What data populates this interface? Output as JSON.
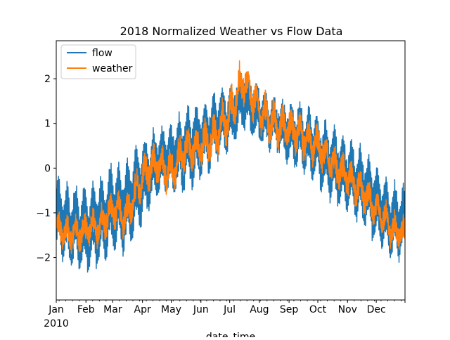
{
  "chart_data": {
    "type": "line",
    "title": "2018 Normalized Weather vs Flow Data",
    "xlabel": "date_time",
    "ylabel": "",
    "x_tick_labels": [
      "Jan",
      "Feb",
      "Mar",
      "Apr",
      "May",
      "Jun",
      "Jul",
      "Aug",
      "Sep",
      "Oct",
      "Nov",
      "Dec"
    ],
    "x_year_label": "2010",
    "y_ticks": [
      -2,
      -1,
      0,
      1,
      2
    ],
    "ylim": [
      -2.95,
      2.85
    ],
    "xlim": [
      "2010-01-01",
      "2010-12-31"
    ],
    "grid": false,
    "legend": {
      "position": "upper-left",
      "entries": [
        "flow",
        "weather"
      ]
    },
    "series": [
      {
        "name": "flow",
        "color": "#1f77b4",
        "x": [
          "2010-01-01",
          "2010-01-15",
          "2010-02-01",
          "2010-02-15",
          "2010-03-01",
          "2010-03-15",
          "2010-04-01",
          "2010-04-15",
          "2010-05-01",
          "2010-05-15",
          "2010-06-01",
          "2010-06-15",
          "2010-07-01",
          "2010-07-15",
          "2010-08-01",
          "2010-08-15",
          "2010-09-01",
          "2010-09-15",
          "2010-10-01",
          "2010-10-15",
          "2010-11-01",
          "2010-11-15",
          "2010-12-01",
          "2010-12-15",
          "2010-12-31"
        ],
        "y": [
          -1.1,
          -1.3,
          -1.4,
          -1.2,
          -0.9,
          -0.9,
          -0.3,
          0.1,
          0.2,
          0.4,
          0.6,
          0.9,
          1.1,
          1.6,
          1.2,
          1.0,
          0.8,
          0.7,
          0.4,
          0.1,
          -0.2,
          -0.4,
          -0.8,
          -1.2,
          -1.2
        ],
        "amplitude": [
          1.0,
          1.05,
          1.1,
          1.15,
          1.2,
          1.15,
          1.1,
          0.9,
          0.9,
          1.05,
          1.0,
          0.95,
          0.8,
          0.8,
          0.75,
          0.65,
          0.75,
          0.85,
          0.9,
          0.95,
          0.95,
          1.0,
          1.05,
          1.0,
          0.9
        ]
      },
      {
        "name": "weather",
        "color": "#ff7f0e",
        "x": [
          "2010-01-01",
          "2010-01-15",
          "2010-02-01",
          "2010-02-15",
          "2010-03-01",
          "2010-03-15",
          "2010-04-01",
          "2010-04-15",
          "2010-05-01",
          "2010-05-15",
          "2010-06-01",
          "2010-06-15",
          "2010-07-01",
          "2010-07-15",
          "2010-08-01",
          "2010-08-15",
          "2010-09-01",
          "2010-09-15",
          "2010-10-01",
          "2010-10-15",
          "2010-11-01",
          "2010-11-15",
          "2010-12-01",
          "2010-12-15",
          "2010-12-31"
        ],
        "y": [
          -1.3,
          -1.5,
          -1.4,
          -1.3,
          -0.9,
          -1.1,
          -0.2,
          0.1,
          -0.1,
          0.4,
          0.5,
          0.7,
          1.2,
          2.0,
          1.3,
          1.0,
          0.9,
          0.7,
          0.5,
          0.1,
          -0.2,
          -0.5,
          -0.9,
          -1.3,
          -1.5
        ],
        "amplitude": [
          0.3,
          0.35,
          0.35,
          0.4,
          0.4,
          0.4,
          0.45,
          0.45,
          0.45,
          0.45,
          0.45,
          0.5,
          0.5,
          0.5,
          0.5,
          0.5,
          0.45,
          0.45,
          0.45,
          0.4,
          0.4,
          0.4,
          0.35,
          0.35,
          0.3
        ]
      }
    ]
  }
}
